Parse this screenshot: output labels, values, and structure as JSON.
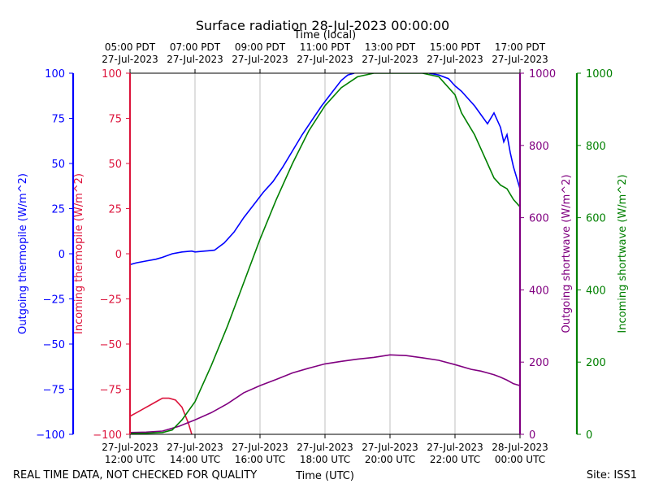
{
  "chart_data": {
    "type": "line",
    "title": "Surface radiation 28-Jul-2023 00:00:00",
    "top_axis_label": "Time (local)",
    "xlabel": "Time (UTC)",
    "footer_left": "REAL TIME DATA, NOT CHECKED FOR QUALITY",
    "footer_right": "Site: ISS1",
    "x_range_hours_utc": [
      12.0,
      24.0
    ],
    "x_ticks_utc": [
      {
        "hour": 12,
        "date": "27-Jul-2023",
        "time": "12:00 UTC"
      },
      {
        "hour": 14,
        "date": "27-Jul-2023",
        "time": "14:00 UTC"
      },
      {
        "hour": 16,
        "date": "27-Jul-2023",
        "time": "16:00 UTC"
      },
      {
        "hour": 18,
        "date": "27-Jul-2023",
        "time": "18:00 UTC"
      },
      {
        "hour": 20,
        "date": "27-Jul-2023",
        "time": "20:00 UTC"
      },
      {
        "hour": 22,
        "date": "27-Jul-2023",
        "time": "22:00 UTC"
      },
      {
        "hour": 24,
        "date": "28-Jul-2023",
        "time": "00:00 UTC"
      }
    ],
    "x_ticks_local": [
      {
        "hour": 12,
        "time": "05:00 PDT",
        "date": "27-Jul-2023"
      },
      {
        "hour": 14,
        "time": "07:00 PDT",
        "date": "27-Jul-2023"
      },
      {
        "hour": 16,
        "time": "09:00 PDT",
        "date": "27-Jul-2023"
      },
      {
        "hour": 18,
        "time": "11:00 PDT",
        "date": "27-Jul-2023"
      },
      {
        "hour": 20,
        "time": "13:00 PDT",
        "date": "27-Jul-2023"
      },
      {
        "hour": 22,
        "time": "15:00 PDT",
        "date": "27-Jul-2023"
      },
      {
        "hour": 24,
        "time": "17:00 PDT",
        "date": "27-Jul-2023"
      }
    ],
    "grid": true,
    "axes": [
      {
        "id": "out_thermo",
        "label": "Outgoing thermopile (W/m^2)",
        "side": "left",
        "color": "#0000ff",
        "range": [
          -100,
          100
        ],
        "ticks": [
          -100,
          -75,
          -50,
          -25,
          0,
          25,
          50,
          75,
          100
        ]
      },
      {
        "id": "in_thermo",
        "label": "Incoming thermopile (W/m^2)",
        "side": "left",
        "color": "#dc143c",
        "range": [
          -100,
          100
        ],
        "ticks": [
          -100,
          -75,
          -50,
          -25,
          0,
          25,
          50,
          75,
          100
        ]
      },
      {
        "id": "out_sw",
        "label": "Outgoing shortwave (W/m^2)",
        "side": "right",
        "color": "#800080",
        "range": [
          0,
          1000
        ],
        "ticks": [
          0,
          200,
          400,
          600,
          800,
          1000
        ]
      },
      {
        "id": "in_sw",
        "label": "Incoming shortwave (W/m^2)",
        "side": "right",
        "color": "#008000",
        "range": [
          0,
          1000
        ],
        "ticks": [
          0,
          200,
          400,
          600,
          800,
          1000
        ]
      }
    ],
    "series": [
      {
        "name": "Outgoing thermopile (W/m^2)",
        "axis": "out_thermo",
        "color": "#0000ff",
        "x": [
          12.0,
          12.2,
          12.5,
          12.8,
          13.0,
          13.3,
          13.6,
          13.9,
          14.0,
          14.3,
          14.6,
          14.9,
          15.2,
          15.5,
          15.8,
          16.1,
          16.4,
          16.7,
          17.0,
          17.3,
          17.6,
          17.9,
          18.2,
          18.5,
          18.7,
          18.9
        ],
        "y": [
          -6,
          -5,
          -4,
          -3,
          -2,
          0,
          1,
          1.5,
          1,
          1.5,
          2,
          6,
          12,
          20,
          27,
          34,
          40,
          48,
          57,
          66,
          74,
          82,
          89,
          96,
          99,
          100
        ]
      },
      {
        "name": "Outgoing thermopile (W/m^2)",
        "axis": "out_thermo",
        "color": "#0000ff",
        "x": [
          21.2,
          21.5,
          21.8,
          22.0,
          22.2,
          22.4,
          22.6,
          22.8,
          23.0,
          23.2,
          23.4,
          23.5,
          23.6,
          23.7,
          23.8,
          23.9,
          24.0
        ],
        "y": [
          100,
          99,
          97,
          93,
          90,
          86,
          82,
          77,
          72,
          78,
          70,
          62,
          66,
          56,
          48,
          42,
          36
        ]
      },
      {
        "name": "Incoming thermopile (W/m^2)",
        "axis": "in_thermo",
        "color": "#dc143c",
        "x": [
          12.0,
          12.2,
          12.4,
          12.6,
          12.8,
          13.0,
          13.2,
          13.4,
          13.6,
          13.8,
          13.9
        ],
        "y": [
          -90,
          -88,
          -86,
          -84,
          -82,
          -80,
          -80,
          -81,
          -85,
          -94,
          -100
        ]
      },
      {
        "name": "Outgoing shortwave (W/m^2)",
        "axis": "out_sw",
        "color": "#800080",
        "x": [
          12.0,
          12.5,
          13.0,
          13.5,
          14.0,
          14.5,
          15.0,
          15.5,
          16.0,
          16.5,
          17.0,
          17.5,
          18.0,
          18.5,
          19.0,
          19.5,
          20.0,
          20.5,
          21.0,
          21.5,
          22.0,
          22.5,
          22.8,
          23.0,
          23.2,
          23.4,
          23.6,
          23.8,
          24.0
        ],
        "y": [
          5,
          6,
          9,
          22,
          40,
          60,
          85,
          115,
          135,
          152,
          170,
          183,
          195,
          202,
          208,
          213,
          220,
          218,
          212,
          205,
          193,
          180,
          175,
          170,
          165,
          158,
          150,
          140,
          135
        ]
      },
      {
        "name": "Incoming shortwave (W/m^2)",
        "axis": "in_sw",
        "color": "#008000",
        "x": [
          12.0,
          12.5,
          13.0,
          13.3,
          13.6,
          14.0,
          14.5,
          15.0,
          15.5,
          16.0,
          16.5,
          17.0,
          17.5,
          18.0,
          18.5,
          19.0,
          19.5,
          20.0,
          20.5,
          21.0,
          21.5,
          22.0,
          22.2,
          22.4,
          22.6,
          22.8,
          23.0,
          23.2,
          23.4,
          23.6,
          23.8,
          24.0
        ],
        "y": [
          2,
          3,
          5,
          12,
          40,
          90,
          190,
          300,
          420,
          540,
          650,
          750,
          840,
          910,
          960,
          990,
          1000,
          1000,
          1000,
          1000,
          990,
          940,
          890,
          860,
          830,
          790,
          750,
          710,
          690,
          680,
          650,
          630
        ]
      }
    ]
  }
}
